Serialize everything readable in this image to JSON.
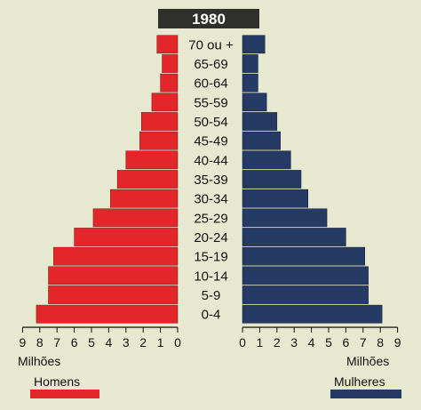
{
  "chart_data": {
    "type": "bar",
    "title": "1980",
    "categories": [
      "0-4",
      "5-9",
      "10-14",
      "15-19",
      "20-24",
      "25-29",
      "30-34",
      "35-39",
      "40-44",
      "45-49",
      "50-54",
      "55-59",
      "60-64",
      "65-69",
      "70 ou +"
    ],
    "series": [
      {
        "name": "Homens",
        "values": [
          8.2,
          7.5,
          7.5,
          7.2,
          6.0,
          4.9,
          3.9,
          3.5,
          3.0,
          2.2,
          2.1,
          1.5,
          1.0,
          0.9,
          1.2
        ]
      },
      {
        "name": "Mulheres",
        "values": [
          8.1,
          7.3,
          7.3,
          7.1,
          6.0,
          4.9,
          3.8,
          3.4,
          2.8,
          2.2,
          2.0,
          1.4,
          0.9,
          0.9,
          1.3
        ]
      }
    ],
    "xlabel_left": "Milhões",
    "xlabel_right": "Milhões",
    "xlim": [
      0,
      9
    ],
    "xticks": [
      0,
      1,
      2,
      3,
      4,
      5,
      6,
      7,
      8,
      9
    ],
    "legend": [
      {
        "label": "Homens",
        "color": "#e3262a",
        "placement": "bottom-left"
      },
      {
        "label": "Mulheres",
        "color": "#253a64",
        "placement": "bottom-right"
      }
    ],
    "colors": {
      "men": "#e3262a",
      "women": "#253a64",
      "title_bg": "#2f302c",
      "title_text": "#ffffff"
    }
  }
}
